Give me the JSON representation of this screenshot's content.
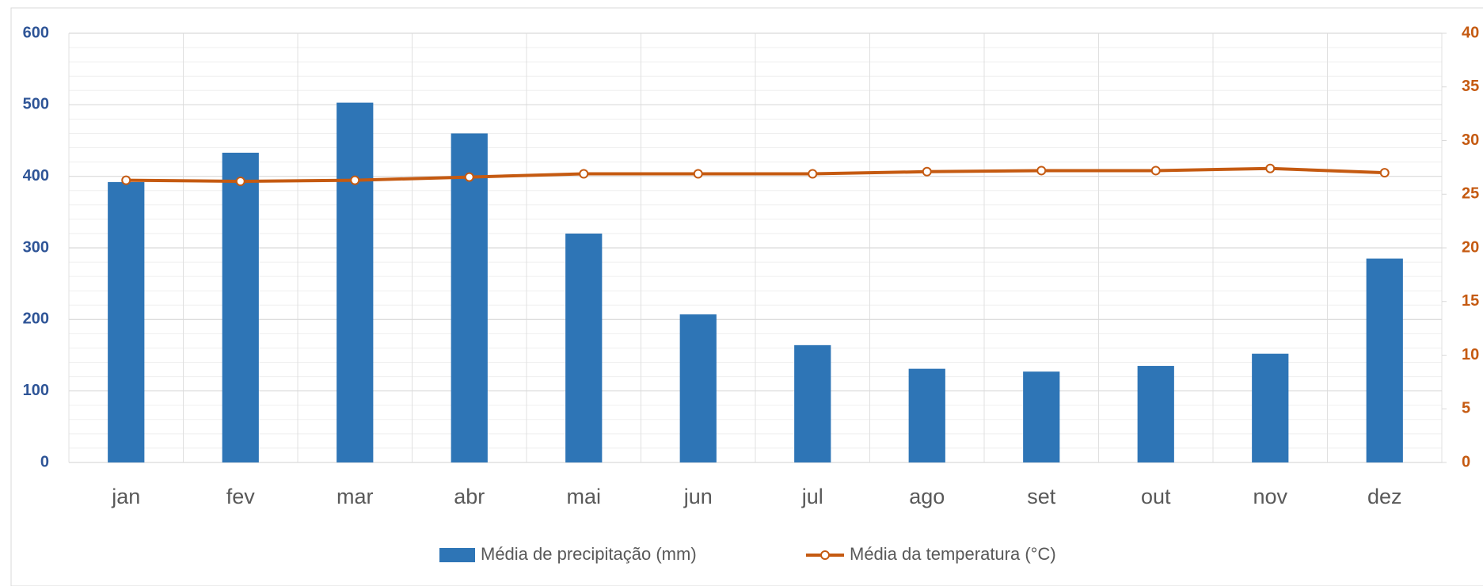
{
  "chart_data": {
    "type": "bar-line",
    "categories": [
      "jan",
      "fev",
      "mar",
      "abr",
      "mai",
      "jun",
      "jul",
      "ago",
      "set",
      "out",
      "nov",
      "dez"
    ],
    "series": [
      {
        "name": "Média de precipitação (mm)",
        "type": "bar",
        "color": "#2e75b6",
        "axis": "y",
        "values": [
          392,
          433,
          503,
          460,
          320,
          207,
          164,
          131,
          127,
          135,
          152,
          285
        ]
      },
      {
        "name": "Média da temperatura (°C)",
        "type": "line",
        "color": "#c55a11",
        "axis": "y2",
        "values": [
          26.3,
          26.2,
          26.3,
          26.6,
          26.9,
          26.9,
          26.9,
          27.1,
          27.2,
          27.2,
          27.4,
          27.0
        ]
      }
    ],
    "ylim": [
      0,
      600
    ],
    "yticks": [
      0,
      100,
      200,
      300,
      400,
      500,
      600
    ],
    "y2lim": [
      0,
      40
    ],
    "y2ticks": [
      0,
      5,
      10,
      15,
      20,
      25,
      30,
      35,
      40
    ],
    "grid": true
  }
}
